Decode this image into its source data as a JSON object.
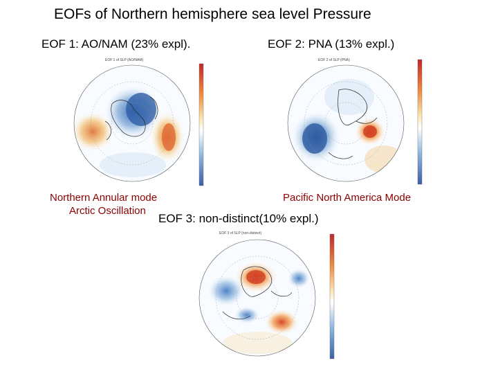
{
  "slide": {
    "title": "EOFs of Northern hemisphere sea level Pressure"
  },
  "panels": [
    {
      "heading": "EOF 1: AO/NAM (23% expl).",
      "mode_label_lines": [
        "Northern Annular mode",
        "Arctic Oscillation"
      ]
    },
    {
      "heading": "EOF 2: PNA  (13% expl.)",
      "mode_label_lines": [
        "Pacific North America Mode"
      ]
    },
    {
      "heading": "EOF 3: non-distinct(10% expl.)",
      "mode_label_lines": []
    }
  ],
  "colors": {
    "mode_label": "#8b0000",
    "positive_anomaly": "#e0703a",
    "negative_anomaly": "#4a7fc4",
    "neutral": "#ffffff"
  }
}
